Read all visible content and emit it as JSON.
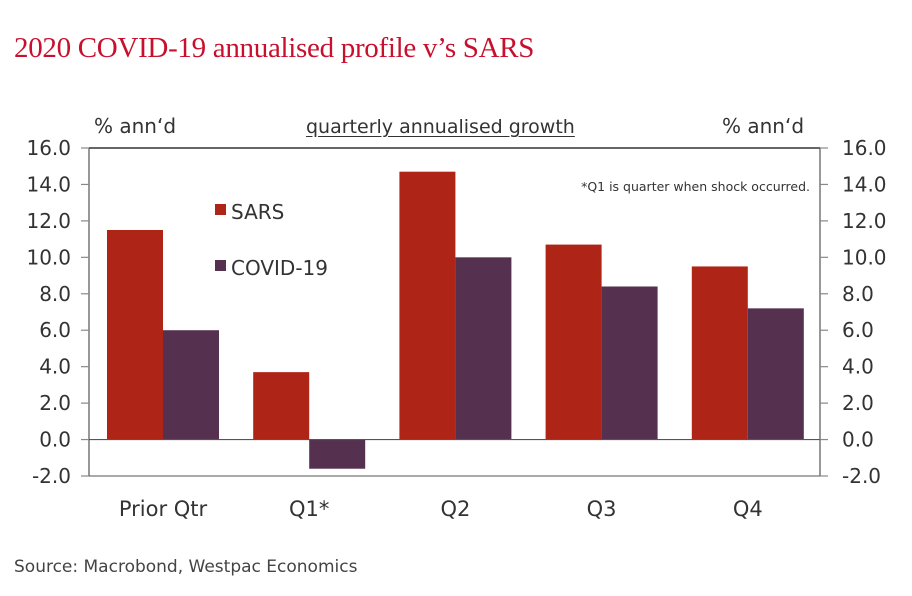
{
  "title": "2020 COVID-19 annualised profile v’s SARS",
  "source": "Source: Macrobond, Westpac Economics",
  "colors": {
    "title": "#c8102e",
    "SARS": "#ae2416",
    "COVID-19": "#55304f",
    "axis": "#555555"
  },
  "chart_data": {
    "type": "bar",
    "title": "2020 COVID-19 annualised profile v’s SARS",
    "subtitle": "quarterly annualised growth",
    "ylabel_left": "% ann‘d",
    "ylabel_right": "% ann‘d",
    "xlabel": "",
    "categories": [
      "Prior Qtr",
      "Q1*",
      "Q2",
      "Q3",
      "Q4"
    ],
    "series": [
      {
        "name": "SARS",
        "values": [
          11.5,
          3.7,
          14.7,
          10.7,
          9.5
        ]
      },
      {
        "name": "COVID-19",
        "values": [
          6.0,
          -1.6,
          10.0,
          8.4,
          7.2
        ]
      }
    ],
    "ylim": [
      -2.0,
      16.0
    ],
    "yticks": [
      -2.0,
      0.0,
      2.0,
      4.0,
      6.0,
      8.0,
      10.0,
      12.0,
      14.0,
      16.0
    ],
    "ytick_labels": [
      "-2.0",
      "0.0",
      "2.0",
      "4.0",
      "6.0",
      "8.0",
      "10.0",
      "12.0",
      "14.0",
      "16.0"
    ],
    "dual_axis": true,
    "grid": false,
    "legend": {
      "position": "top-left-inside",
      "entries": [
        "SARS",
        "COVID-19"
      ]
    },
    "annotation": "*Q1 is quarter when shock occurred."
  }
}
